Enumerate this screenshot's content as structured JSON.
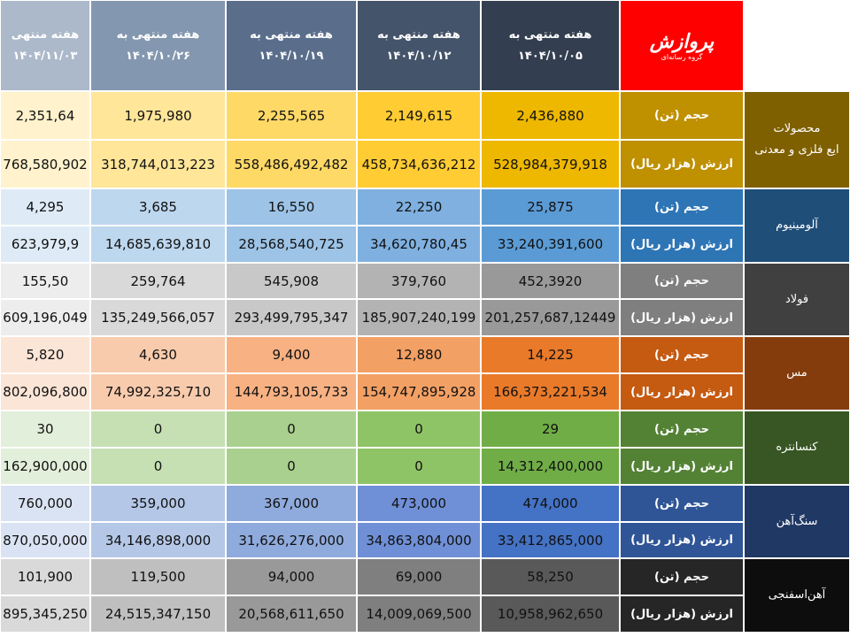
{
  "header": {
    "logo": {
      "title": "پروازش",
      "subtitle": "گروه رسانه‌ای"
    },
    "columns": [
      {
        "label": "هفته منتهی به",
        "date": "۱۴۰۴/۱۰/۰۵"
      },
      {
        "label": "هفته منتهی به",
        "date": "۱۴۰۴/۱۰/۱۲"
      },
      {
        "label": "هفته منتهی به",
        "date": "۱۴۰۴/۱۰/۱۹"
      },
      {
        "label": "هفته منتهی به",
        "date": "۱۴۰۴/۱۰/۲۶"
      },
      {
        "label": "هفته منتهی",
        "date": "۱۴۰۴/۱۱/۰۳"
      }
    ]
  },
  "groups": [
    {
      "name": [
        "محصولات",
        "ایع فلزی و معدنی"
      ],
      "rows": [
        {
          "metric": "حجم (تن)",
          "values": [
            "2,436,880",
            "2,149,615",
            "2,255,565",
            "1,975,980",
            "2,351,64"
          ]
        },
        {
          "metric": "ارزش (هزار ریال)",
          "values": [
            "528,984,379,918",
            "458,734,636,212",
            "558,486,492,482",
            "318,744,013,223",
            "768,580,902"
          ]
        }
      ]
    },
    {
      "name": [
        "آلومینیوم"
      ],
      "rows": [
        {
          "metric": "حجم (تن)",
          "values": [
            "25,875",
            "22,250",
            "16,550",
            "3,685",
            "4,295"
          ]
        },
        {
          "metric": "ارزش (هزار ریال)",
          "values": [
            "33,240,391,600",
            "34,620,780,45",
            "28,568,540,725",
            "14,685,639,810",
            "623,979,9"
          ]
        }
      ]
    },
    {
      "name": [
        "فولاد"
      ],
      "rows": [
        {
          "metric": "حجم (تن)",
          "values": [
            "452,3920",
            "379,760",
            "545,908",
            "259,764",
            "155,50"
          ]
        },
        {
          "metric": "ارزش (هزار ریال)",
          "values": [
            "201,257,687,12449",
            "185,907,240,199",
            "293,499,795,347",
            "135,249,566,057",
            "609,196,049"
          ]
        }
      ]
    },
    {
      "name": [
        "مس"
      ],
      "rows": [
        {
          "metric": "حجم (تن)",
          "values": [
            "14,225",
            "12,880",
            "9,400",
            "4,630",
            "5,820"
          ]
        },
        {
          "metric": "ارزش (هزار ریال)",
          "values": [
            "166,373,221,534",
            "154,747,895,928",
            "144,793,105,733",
            "74,992,325,710",
            "802,096,800"
          ]
        }
      ]
    },
    {
      "name": [
        "کنسانتره"
      ],
      "rows": [
        {
          "metric": "حجم (تن)",
          "values": [
            "29",
            "0",
            "0",
            "0",
            "30"
          ]
        },
        {
          "metric": "ارزش (هزار ریال)",
          "values": [
            "14,312,400,000",
            "0",
            "0",
            "0",
            "162,900,000"
          ]
        }
      ]
    },
    {
      "name": [
        "سنگ‌آهن"
      ],
      "rows": [
        {
          "metric": "حجم (تن)",
          "values": [
            "474,000",
            "473,000",
            "367,000",
            "359,000",
            "760,000"
          ]
        },
        {
          "metric": "ارزش (هزار ریال)",
          "values": [
            "33,412,865,000",
            "34,863,804,000",
            "31,626,276,000",
            "34,146,898,000",
            "870,050,000"
          ]
        }
      ]
    },
    {
      "name": [
        "آهن‌اسفنجی"
      ],
      "rows": [
        {
          "metric": "حجم (تن)",
          "values": [
            "58,250",
            "69,000",
            "94,000",
            "119,500",
            "101,900"
          ]
        },
        {
          "metric": "ارزش (هزار ریال)",
          "values": [
            "10,958,962,650",
            "14,009,069,500",
            "20,568,611,650",
            "24,515,347,150",
            "895,345,250"
          ]
        }
      ]
    }
  ]
}
